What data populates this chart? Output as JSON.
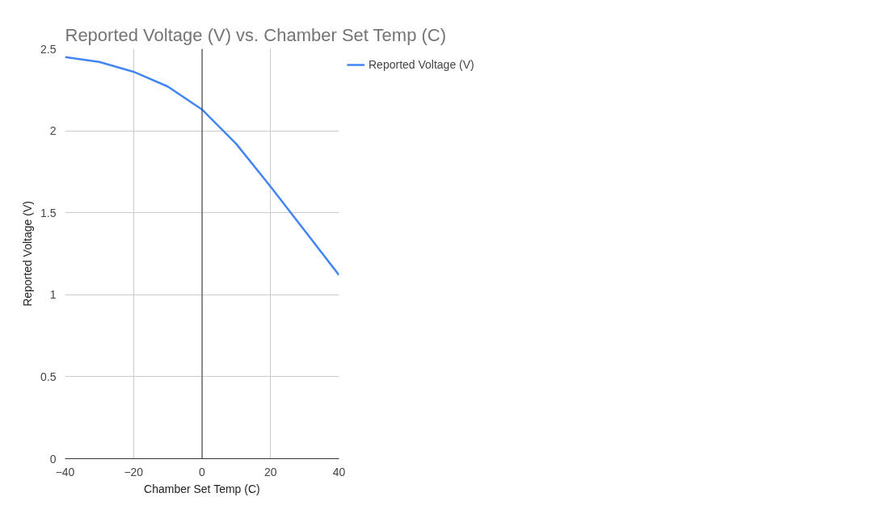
{
  "chart_data": {
    "type": "line",
    "title": "Reported Voltage (V) vs. Chamber Set Temp (C)",
    "xlabel": "Chamber Set Temp (C)",
    "ylabel": "Reported Voltage (V)",
    "x": [
      -40,
      -30,
      -20,
      -10,
      0,
      10,
      20,
      30,
      40
    ],
    "series": [
      {
        "name": "Reported Voltage (V)",
        "color": "#4285f4",
        "values": [
          2.45,
          2.42,
          2.36,
          2.27,
          2.13,
          1.92,
          1.66,
          1.39,
          1.12
        ]
      }
    ],
    "xlim": [
      -40,
      40
    ],
    "xticks": [
      -40,
      -20,
      0,
      20,
      40
    ],
    "ylim": [
      0,
      2.5
    ],
    "yticks": [
      0,
      0.5,
      1,
      1.5,
      2,
      2.5
    ],
    "ref_lines": [
      {
        "axis": "x",
        "value": 0,
        "label": null,
        "color": "#333333"
      }
    ],
    "grid": true,
    "legend": "top right",
    "marker": "none",
    "line_style": "solid"
  }
}
